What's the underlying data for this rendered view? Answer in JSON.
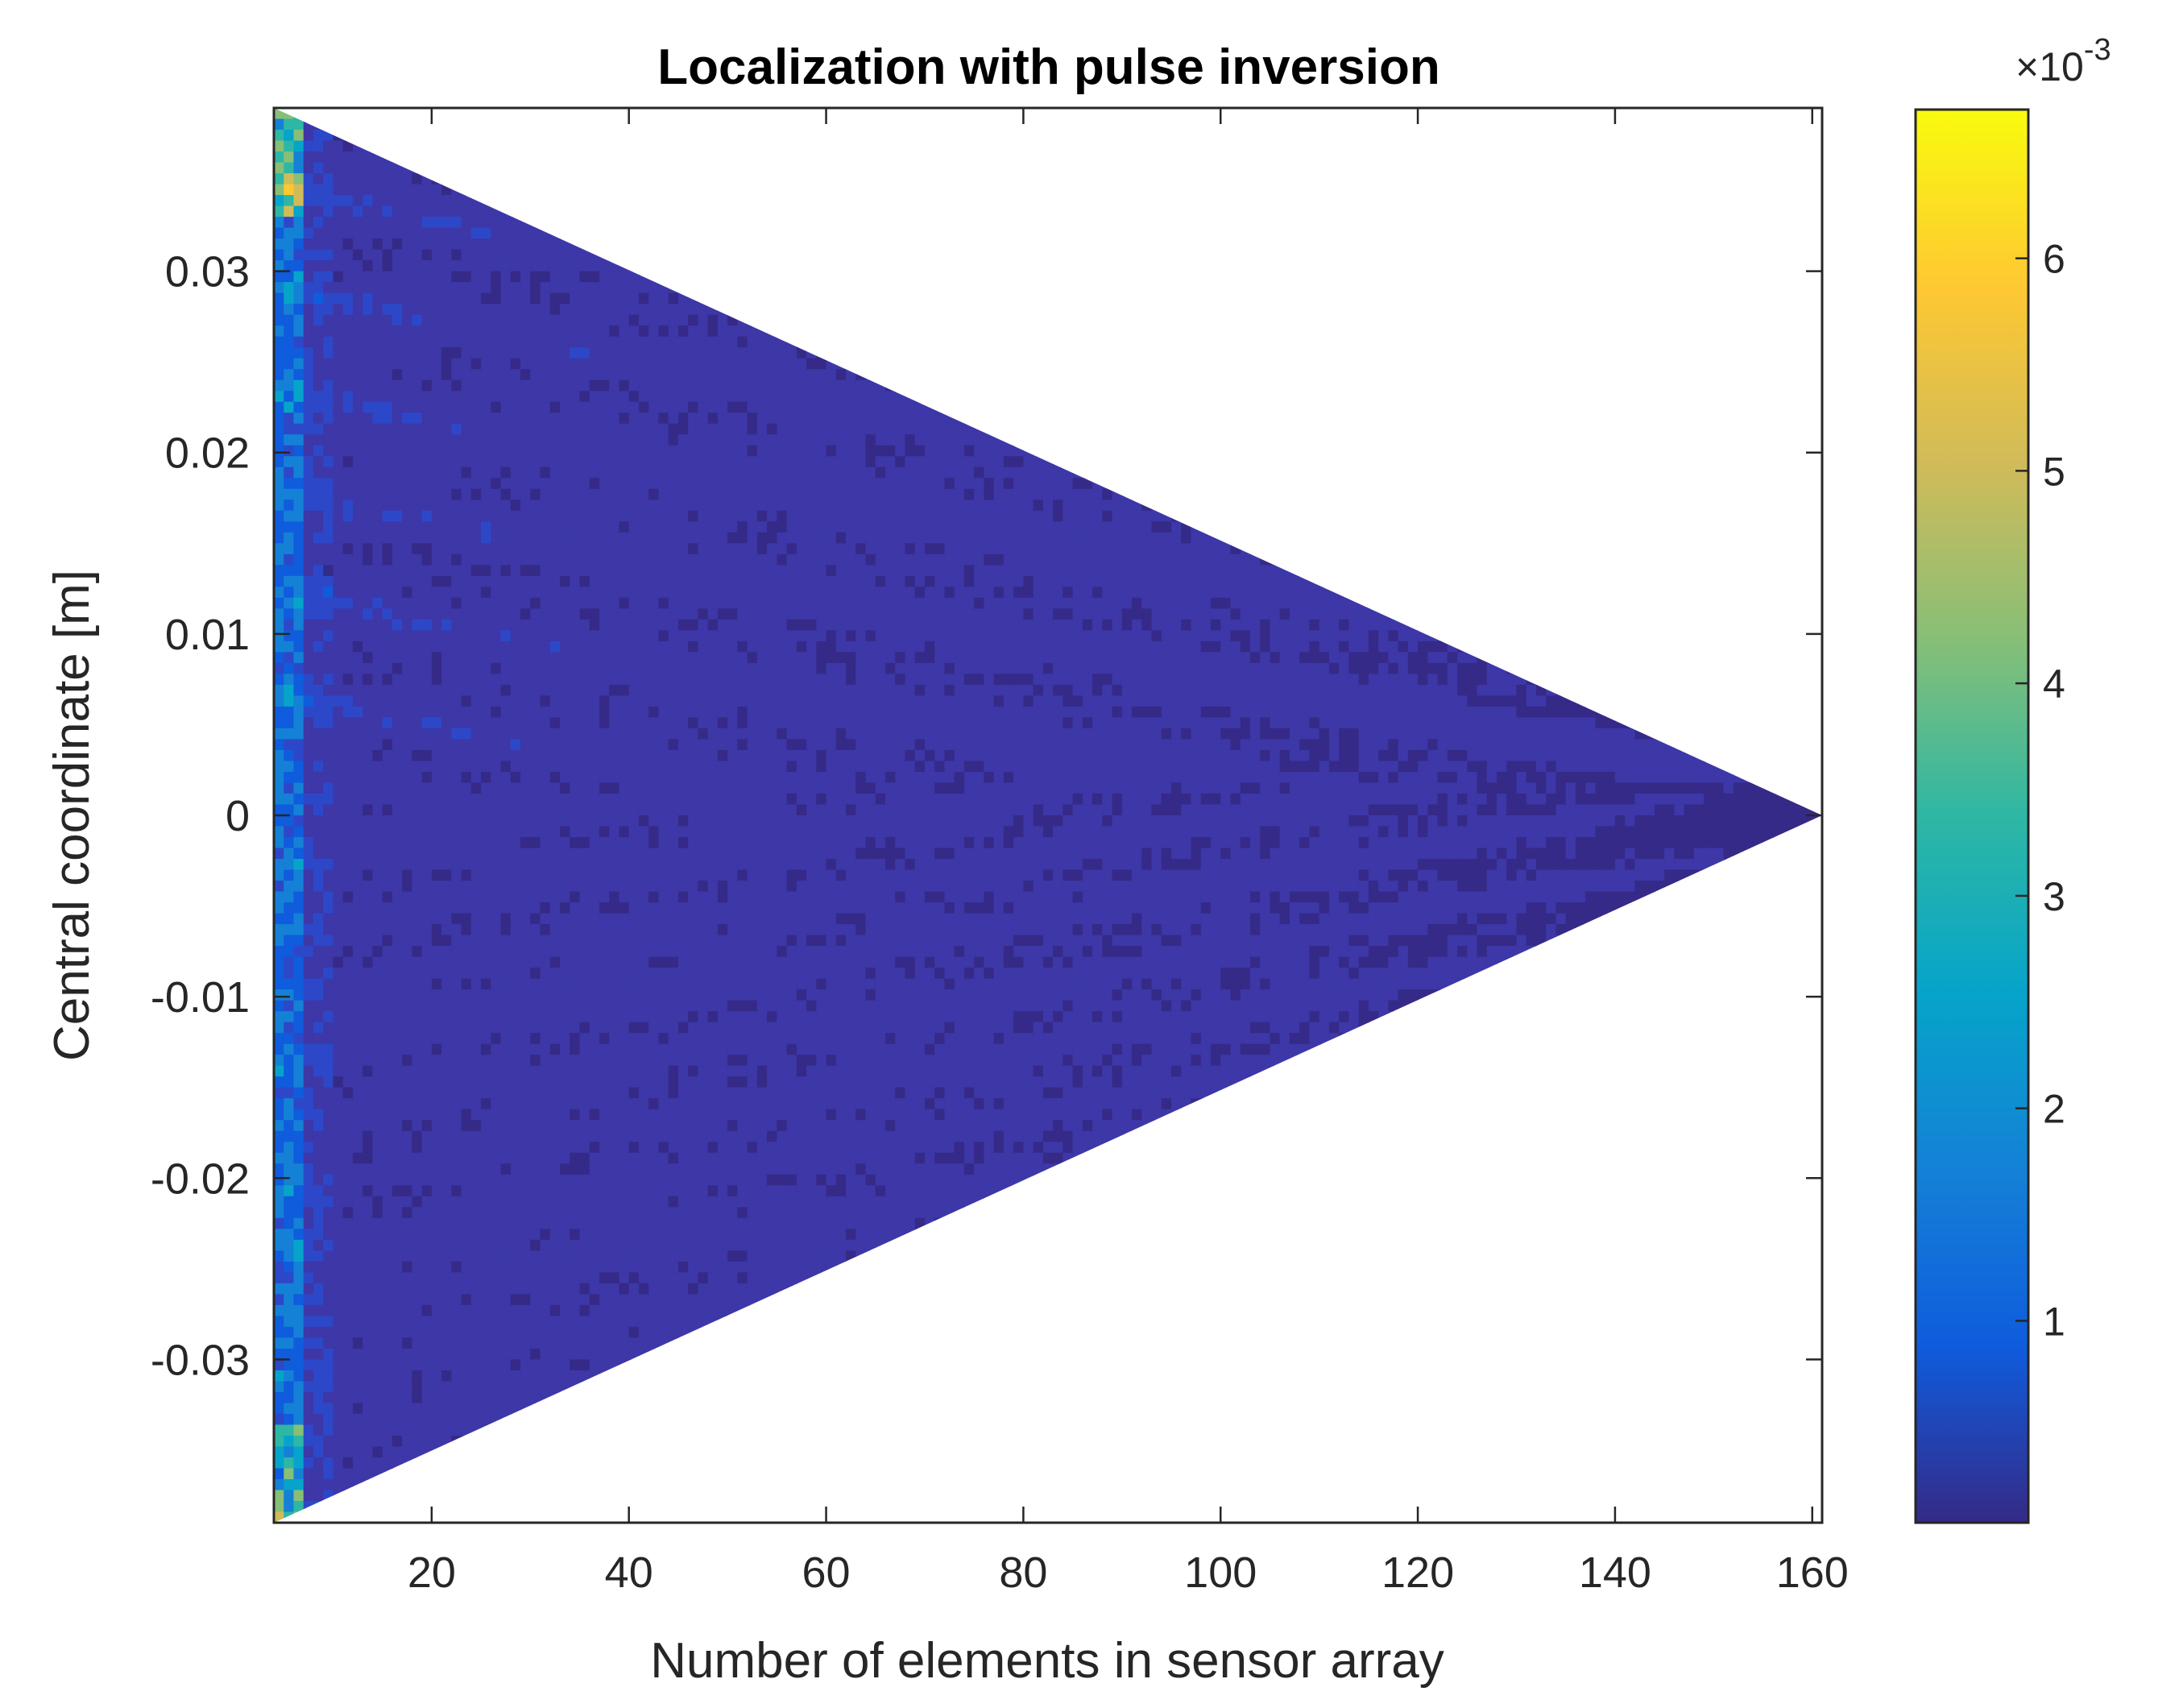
{
  "chart_data": {
    "type": "heatmap",
    "title": "Localization with pulse inversion",
    "xlabel": "Number of elements in sensor array",
    "ylabel": "Central coordinate [m]",
    "xlim": [
      4,
      161
    ],
    "ylim": [
      -0.039,
      0.039
    ],
    "x_ticks": [
      20,
      40,
      60,
      80,
      100,
      120,
      140,
      160
    ],
    "x_tick_labels": [
      "20",
      "40",
      "60",
      "80",
      "100",
      "120",
      "140",
      "160"
    ],
    "y_ticks": [
      0.03,
      0.02,
      0.01,
      0,
      -0.01,
      -0.02,
      -0.03
    ],
    "y_tick_labels": [
      "0.03",
      "0.02",
      "0.01",
      "0",
      "-0.01",
      "-0.02",
      "-0.03"
    ],
    "region": {
      "shape": "triangle",
      "apex": {
        "x": 161,
        "y": 0
      },
      "base_x": 4,
      "base_y_range": [
        -0.039,
        0.039
      ]
    },
    "colorbar": {
      "colormap": "parula",
      "limits": [
        5e-05,
        0.0067
      ],
      "ticks": [
        0.001,
        0.002,
        0.003,
        0.004,
        0.005,
        0.006
      ],
      "tick_labels": [
        "1",
        "2",
        "3",
        "4",
        "5",
        "6"
      ],
      "multiplier": "×10",
      "exponent": "-3"
    },
    "grid": false,
    "colors": {
      "low": "#352a87",
      "high": "#f9fb0e"
    }
  }
}
